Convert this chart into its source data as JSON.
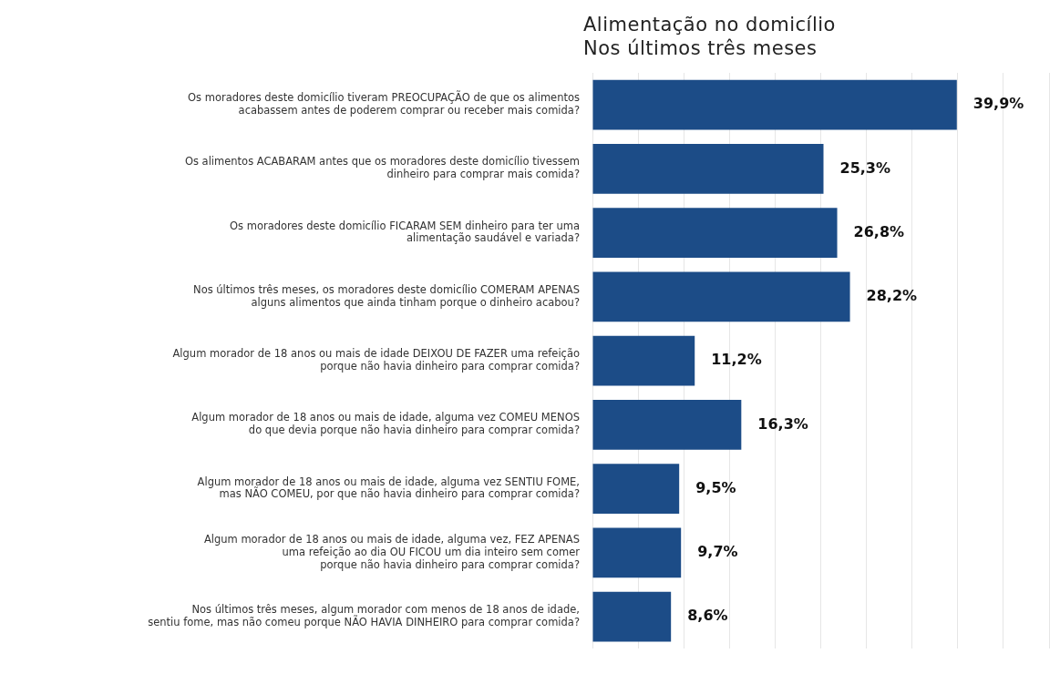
{
  "chart_data": {
    "type": "bar",
    "orientation": "horizontal",
    "title": "Alimentação no domicílio\nNos últimos três meses",
    "categories": [
      "Os moradores deste domicílio tiveram PREOCUPAÇÃO de que os alimentos\nacabassem antes de poderem comprar ou receber mais comida?",
      "Os alimentos ACABARAM antes que os moradores deste domicílio tivessem\ndinheiro para comprar mais comida?",
      "Os moradores deste domicílio FICARAM SEM dinheiro para ter uma\nalimentação saudável e variada?",
      "Nos últimos três meses, os moradores deste domicílio COMERAM APENAS\nalguns alimentos que ainda tinham porque o dinheiro acabou?",
      "Algum morador de 18 anos ou mais de idade DEIXOU DE FAZER uma refeição\nporque não havia dinheiro para comprar comida?",
      "Algum morador de 18 anos ou mais de idade, alguma vez COMEU MENOS\ndo que devia porque não havia dinheiro para comprar comida?",
      "Algum morador de 18 anos ou mais de idade, alguma vez SENTIU FOME,\nmas NÃO COMEU, por que não havia dinheiro para comprar comida?",
      "Algum morador de 18 anos ou mais de idade, alguma vez, FEZ APENAS\numa refeição ao dia OU FICOU um dia inteiro sem comer\nporque não havia dinheiro para comprar comida?",
      "Nos últimos três meses, algum morador com menos de 18 anos de idade,\nsentiu fome, mas não comeu porque NÃO HAVIA DINHEIRO para comprar comida?"
    ],
    "values": [
      39.9,
      25.3,
      26.8,
      28.2,
      11.2,
      16.3,
      9.5,
      9.7,
      8.6
    ],
    "value_labels": [
      "39,9%",
      "25,3%",
      "26,8%",
      "28,2%",
      "11,2%",
      "16,3%",
      "9,5%",
      "9,7%",
      "8,6%"
    ],
    "color": "#1c4c87",
    "xlim": [
      0,
      50
    ],
    "xticks": [
      {
        "value": 0,
        "label": null
      },
      {
        "value": 5,
        "label": null
      },
      {
        "value": 10,
        "label": null
      },
      {
        "value": 15,
        "label": null
      },
      {
        "value": 20,
        "label": null
      },
      {
        "value": 25,
        "label": null
      },
      {
        "value": 30,
        "label": null
      },
      {
        "value": 35,
        "label": null
      },
      {
        "value": 40,
        "label": null
      },
      {
        "value": 45,
        "label": null
      },
      {
        "value": 50,
        "label": null
      }
    ],
    "grid": "x",
    "tick_labels": "y"
  }
}
